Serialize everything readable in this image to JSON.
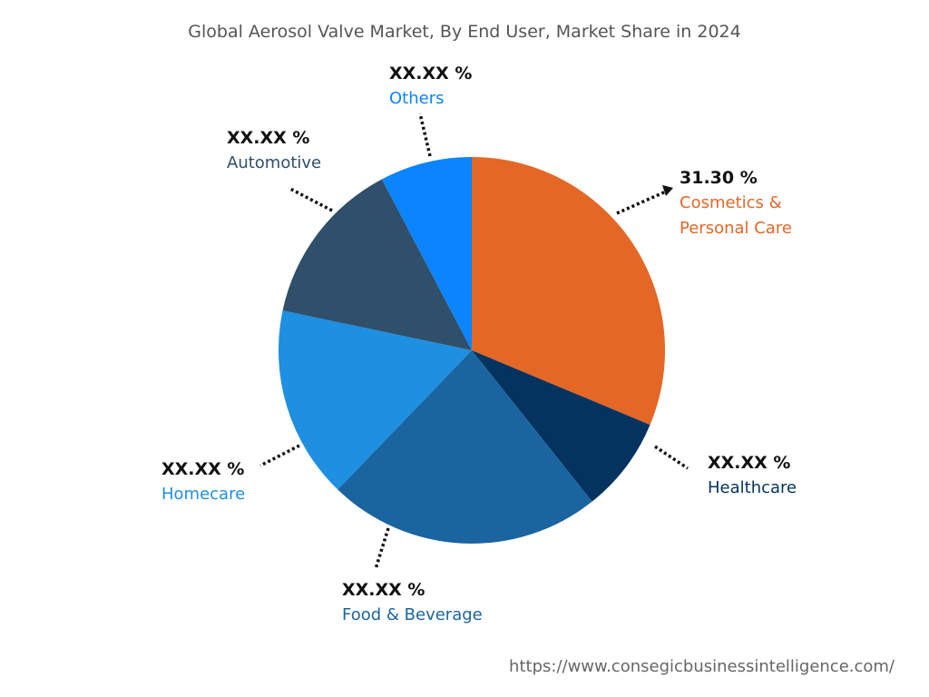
{
  "chart_data": {
    "type": "pie",
    "title": "Global Aerosol Valve Market, By End User, Market Share in 2024",
    "start": "top",
    "direction": "clockwise",
    "slices": [
      {
        "name": "Cosmetics & Personal Care",
        "value": 31.3,
        "label": "31.30 %",
        "color": "#E46726"
      },
      {
        "name": "Healthcare",
        "value": 8.0,
        "label": "XX.XX %",
        "color": "#04335F"
      },
      {
        "name": "Food & Beverage",
        "value": 22.9,
        "label": "XX.XX %",
        "color": "#1A64A0"
      },
      {
        "name": "Homecare",
        "value": 16.1,
        "label": "XX.XX %",
        "color": "#1E8FE1"
      },
      {
        "name": "Automotive",
        "value": 14.0,
        "label": "XX.XX %",
        "color": "#2F4F6A"
      },
      {
        "name": "Others",
        "value": 7.7,
        "label": "XX.XX %",
        "color": "#0A84FF"
      }
    ],
    "source": "https://www.consegicbusinessintelligence.com/"
  }
}
